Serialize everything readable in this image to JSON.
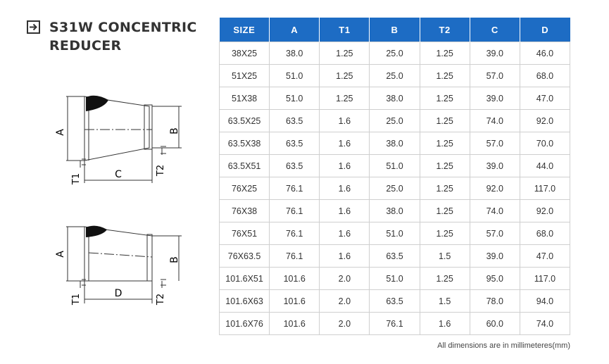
{
  "title": {
    "line1": "S31W CONCENTRIC",
    "line2": "REDUCER"
  },
  "icons": {
    "title_icon": "arrow-right-boxed-icon"
  },
  "diagram_top": {
    "label_a": "A",
    "label_b": "B",
    "label_c": "C",
    "label_t1": "T1",
    "label_t2": "T2"
  },
  "diagram_bottom": {
    "label_a": "A",
    "label_b": "B",
    "label_d": "D",
    "label_t1": "T1",
    "label_t2": "T2"
  },
  "table": {
    "headers": [
      "SIZE",
      "A",
      "T1",
      "B",
      "T2",
      "C",
      "D"
    ],
    "rows": [
      [
        "38X25",
        "38.0",
        "1.25",
        "25.0",
        "1.25",
        "39.0",
        "46.0"
      ],
      [
        "51X25",
        "51.0",
        "1.25",
        "25.0",
        "1.25",
        "57.0",
        "68.0"
      ],
      [
        "51X38",
        "51.0",
        "1.25",
        "38.0",
        "1.25",
        "39.0",
        "47.0"
      ],
      [
        "63.5X25",
        "63.5",
        "1.6",
        "25.0",
        "1.25",
        "74.0",
        "92.0"
      ],
      [
        "63.5X38",
        "63.5",
        "1.6",
        "38.0",
        "1.25",
        "57.0",
        "70.0"
      ],
      [
        "63.5X51",
        "63.5",
        "1.6",
        "51.0",
        "1.25",
        "39.0",
        "44.0"
      ],
      [
        "76X25",
        "76.1",
        "1.6",
        "25.0",
        "1.25",
        "92.0",
        "117.0"
      ],
      [
        "76X38",
        "76.1",
        "1.6",
        "38.0",
        "1.25",
        "74.0",
        "92.0"
      ],
      [
        "76X51",
        "76.1",
        "1.6",
        "51.0",
        "1.25",
        "57.0",
        "68.0"
      ],
      [
        "76X63.5",
        "76.1",
        "1.6",
        "63.5",
        "1.5",
        "39.0",
        "47.0"
      ],
      [
        "101.6X51",
        "101.6",
        "2.0",
        "51.0",
        "1.25",
        "95.0",
        "117.0"
      ],
      [
        "101.6X63",
        "101.6",
        "2.0",
        "63.5",
        "1.5",
        "78.0",
        "94.0"
      ],
      [
        "101.6X76",
        "101.6",
        "2.0",
        "76.1",
        "1.6",
        "60.0",
        "74.0"
      ]
    ]
  },
  "footnote": "All dimensions are in millimeteres(mm)",
  "colors": {
    "header_bg": "#1d6cc4",
    "header_text": "#ffffff",
    "line": "#333333"
  }
}
